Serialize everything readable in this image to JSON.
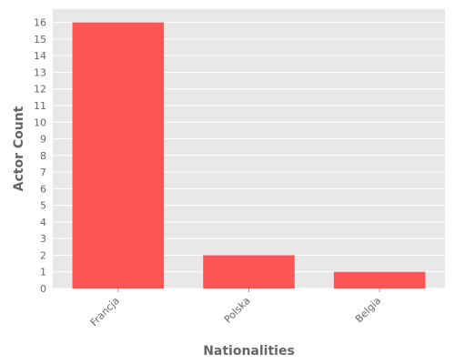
{
  "chart_data": {
    "type": "bar",
    "categories": [
      "Francja",
      "Polska",
      "Belgia"
    ],
    "values": [
      16,
      2,
      1
    ],
    "title": "",
    "xlabel": "Nationalities",
    "ylabel": "Actor Count",
    "ylim": [
      0,
      16.8
    ],
    "yticks": [
      0,
      1,
      2,
      3,
      4,
      5,
      6,
      7,
      8,
      9,
      10,
      11,
      12,
      13,
      14,
      15,
      16
    ],
    "grid": true,
    "legend": "none",
    "colors": {
      "bar": "#ff5555",
      "plot_background": "#e8e8e8",
      "grid": "#ffffff",
      "text": "#666666"
    }
  }
}
